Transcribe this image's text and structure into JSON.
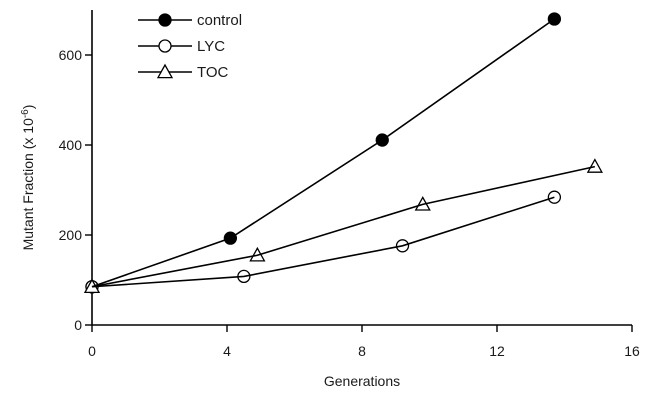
{
  "chart_data": {
    "type": "line",
    "xlabel": "Generations",
    "ylabel": "Mutant Fraction (x 10",
    "ylabel_exponent": "-6",
    "ylabel_suffix": ")",
    "xlim": [
      0,
      16
    ],
    "ylim": [
      0,
      700
    ],
    "xticks": [
      0,
      4,
      8,
      12,
      16
    ],
    "yticks": [
      0,
      200,
      400,
      600
    ],
    "grid": false,
    "legend_position": "top-left",
    "series": [
      {
        "name": "control",
        "marker": "filled-circle",
        "x": [
          0,
          4.1,
          8.6,
          13.7
        ],
        "y": [
          85,
          193,
          411,
          680
        ]
      },
      {
        "name": "LYC",
        "marker": "open-circle",
        "x": [
          0,
          4.5,
          9.2,
          13.7
        ],
        "y": [
          85,
          108,
          176,
          284
        ]
      },
      {
        "name": "TOC",
        "marker": "open-triangle",
        "x": [
          0,
          4.9,
          9.8,
          14.9
        ],
        "y": [
          85,
          155,
          268,
          352
        ]
      }
    ]
  }
}
